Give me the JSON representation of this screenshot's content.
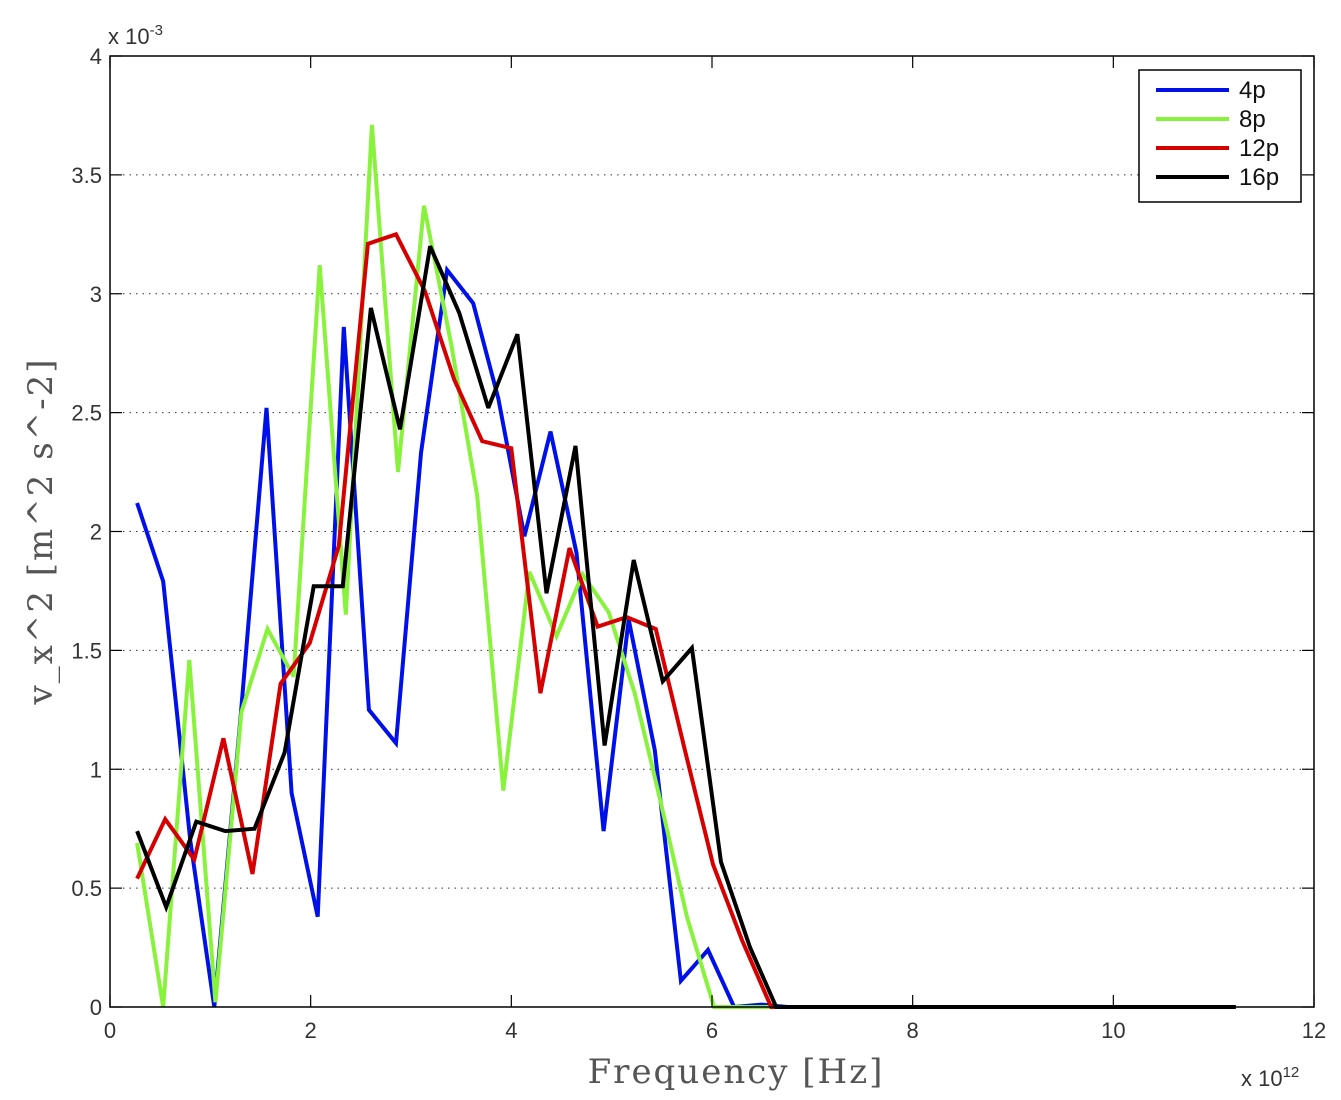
{
  "chart_data": {
    "type": "line",
    "xlabel": "Frequency [Hz]",
    "ylabel": "v_x^2 [m^2 s^-2]",
    "x_exponent_label": "x 10",
    "x_exponent": "12",
    "y_exponent_label": "x 10",
    "y_exponent": "-3",
    "xlim": [
      0,
      12
    ],
    "ylim": [
      0,
      4
    ],
    "xticks": [
      "0",
      "2",
      "4",
      "6",
      "8",
      "10",
      "12"
    ],
    "yticks": [
      "0",
      "0.5",
      "1",
      "1.5",
      "2",
      "2.5",
      "3",
      "3.5",
      "4"
    ],
    "grid": "y-dotted",
    "legend_position": "top-right",
    "series": [
      {
        "name": "4p",
        "color": "#0010e8",
        "x": [
          0.27,
          0.53,
          0.8,
          1.04,
          1.3,
          1.56,
          1.81,
          2.07,
          2.33,
          2.58,
          2.85,
          3.1,
          3.36,
          3.62,
          3.87,
          4.13,
          4.39,
          4.65,
          4.92,
          5.17,
          5.43,
          5.69,
          5.96,
          6.22,
          6.49,
          6.75,
          7.0,
          8.0,
          9.0,
          10.0,
          11.0,
          11.22
        ],
        "y": [
          2.12,
          1.79,
          0.7,
          0.0,
          1.21,
          2.52,
          0.9,
          0.38,
          2.86,
          1.25,
          1.11,
          2.33,
          3.1,
          2.96,
          2.56,
          1.98,
          2.42,
          1.91,
          0.74,
          1.63,
          1.08,
          0.11,
          0.24,
          0.0,
          0.01,
          0.0,
          0.0,
          0.0,
          0.0,
          0.0,
          0.0,
          0.0
        ]
      },
      {
        "name": "8p",
        "color": "#88f23c",
        "x": [
          0.27,
          0.53,
          0.79,
          1.05,
          1.31,
          1.57,
          1.83,
          2.09,
          2.35,
          2.61,
          2.87,
          3.13,
          3.4,
          3.66,
          3.92,
          4.18,
          4.45,
          4.71,
          4.97,
          5.23,
          5.49,
          5.75,
          6.02,
          6.28,
          6.54,
          7.0,
          8.0,
          9.0,
          10.0,
          11.0,
          11.22
        ],
        "y": [
          0.69,
          0.0,
          1.46,
          0.02,
          1.24,
          1.59,
          1.39,
          3.12,
          1.65,
          3.71,
          2.25,
          3.37,
          2.79,
          2.15,
          0.91,
          1.83,
          1.56,
          1.82,
          1.66,
          1.32,
          0.86,
          0.38,
          0.0,
          0.0,
          0.0,
          0.0,
          0.0,
          0.0,
          0.0,
          0.0,
          0.0
        ]
      },
      {
        "name": "12p",
        "color": "#d60000",
        "x": [
          0.27,
          0.55,
          0.84,
          1.13,
          1.42,
          1.7,
          1.99,
          2.28,
          2.57,
          2.85,
          3.14,
          3.43,
          3.71,
          4.0,
          4.29,
          4.58,
          4.86,
          5.15,
          5.44,
          5.73,
          6.01,
          6.3,
          6.59,
          7.0,
          8.0,
          9.0,
          10.0,
          11.0,
          11.22
        ],
        "y": [
          0.54,
          0.79,
          0.62,
          1.13,
          0.56,
          1.36,
          1.53,
          1.94,
          3.21,
          3.25,
          3.01,
          2.64,
          2.38,
          2.35,
          1.32,
          1.93,
          1.6,
          1.64,
          1.59,
          1.08,
          0.6,
          0.28,
          0.0,
          0.0,
          0.0,
          0.0,
          0.0,
          0.0,
          0.0
        ]
      },
      {
        "name": "16p",
        "color": "#000000",
        "x": [
          0.27,
          0.56,
          0.86,
          1.15,
          1.44,
          1.74,
          2.03,
          2.32,
          2.6,
          2.89,
          3.19,
          3.48,
          3.77,
          4.06,
          4.35,
          4.64,
          4.93,
          5.22,
          5.51,
          5.8,
          6.09,
          6.38,
          6.64,
          7.0,
          8.0,
          9.0,
          10.0,
          11.0,
          11.22
        ],
        "y": [
          0.74,
          0.42,
          0.78,
          0.74,
          0.75,
          1.07,
          1.77,
          1.77,
          2.94,
          2.43,
          3.2,
          2.92,
          2.52,
          2.83,
          1.74,
          2.36,
          1.1,
          1.88,
          1.37,
          1.51,
          0.61,
          0.25,
          0.0,
          0.0,
          0.0,
          0.0,
          0.0,
          0.0,
          0.0
        ]
      }
    ]
  }
}
